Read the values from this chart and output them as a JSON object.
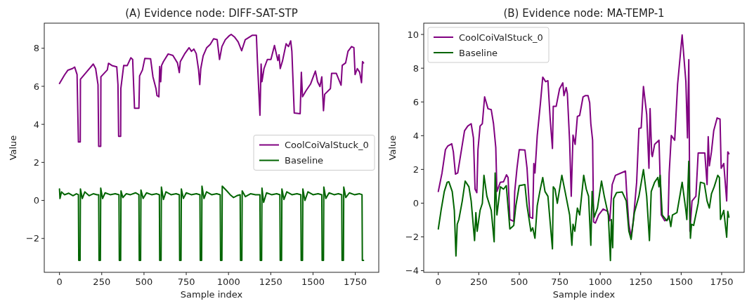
{
  "chart_data": [
    {
      "type": "line",
      "title": "(A) Evidence node: DIFF-SAT-STP",
      "xlabel": "Sample index",
      "ylabel": "Value",
      "xlim": [
        -90,
        1889
      ],
      "ylim": [
        -3.78,
        9.32
      ],
      "xticks": [
        0,
        250,
        500,
        750,
        1000,
        1250,
        1500,
        1750
      ],
      "yticks": [
        -2,
        0,
        2,
        4,
        6,
        8
      ],
      "legend": "right",
      "grid": false,
      "marker": "none",
      "line_style": "solid",
      "series": [
        {
          "name": "CoolCoiValStuck_0",
          "color": "#800080",
          "x": [
            0,
            30,
            50,
            76,
            90,
            104,
            112,
            123,
            124,
            159,
            200,
            214,
            228,
            232,
            244,
            245,
            283,
            290,
            311,
            339,
            346,
            350,
            362,
            363,
            380,
            401,
            422,
            433,
            438,
            444,
            470,
            474,
            491,
            505,
            539,
            553,
            571,
            577,
            588,
            593,
            599,
            604,
            615,
            643,
            671,
            698,
            709,
            715,
            740,
            767,
            781,
            795,
            809,
            823,
            830,
            836,
            850,
            871,
            892,
            912,
            933,
            947,
            961,
            981,
            1002,
            1016,
            1037,
            1057,
            1078,
            1099,
            1140,
            1165,
            1171,
            1186,
            1193,
            1198,
            1210,
            1230,
            1251,
            1272,
            1292,
            1299,
            1306,
            1320,
            1341,
            1355,
            1368,
            1375,
            1389,
            1424,
            1431,
            1438,
            1458,
            1486,
            1514,
            1527,
            1541,
            1552,
            1562,
            1569,
            1603,
            1610,
            1638,
            1666,
            1673,
            1693,
            1707,
            1728,
            1742,
            1749,
            1762,
            1776,
            1787,
            1793,
            1799
          ],
          "values": [
            6.15,
            6.6,
            6.85,
            6.93,
            7.01,
            6.62,
            3.07,
            3.07,
            6.37,
            6.74,
            7.17,
            6.93,
            6.09,
            2.84,
            2.84,
            6.5,
            6.86,
            7.21,
            7.09,
            7.02,
            6.09,
            3.37,
            3.37,
            5.88,
            7.1,
            7.09,
            7.5,
            7.41,
            6.24,
            4.85,
            4.85,
            6.55,
            6.86,
            7.47,
            7.45,
            6.5,
            5.88,
            5.51,
            5.45,
            7.04,
            6.24,
            7.09,
            7.3,
            7.7,
            7.62,
            7.23,
            6.72,
            7.3,
            7.7,
            8.03,
            7.84,
            7.96,
            7.72,
            6.86,
            6.09,
            6.93,
            7.6,
            8.03,
            8.2,
            8.5,
            8.45,
            7.41,
            8.09,
            8.45,
            8.64,
            8.73,
            8.58,
            8.34,
            7.87,
            8.45,
            8.68,
            8.68,
            7.35,
            4.48,
            7.17,
            6.24,
            6.93,
            7.41,
            7.41,
            8.15,
            7.35,
            7.66,
            6.93,
            7.35,
            8.24,
            8.09,
            8.39,
            7.84,
            4.6,
            4.56,
            6.74,
            5.45,
            5.76,
            6.13,
            6.8,
            6.24,
            5.99,
            6.5,
            4.72,
            5.58,
            5.88,
            6.68,
            6.68,
            6.06,
            7.1,
            7.23,
            7.84,
            8.09,
            8.03,
            6.62,
            6.93,
            6.74,
            6.19,
            7.3,
            7.23
          ]
        },
        {
          "name": "Baseline",
          "color": "#006400",
          "x": [
            0,
            3,
            12,
            30,
            55,
            80,
            100,
            112,
            114,
            122,
            124,
            135,
            150,
            175,
            200,
            222,
            232,
            234,
            242,
            244,
            255,
            270,
            300,
            330,
            352,
            354,
            362,
            364,
            375,
            395,
            420,
            450,
            470,
            472,
            480,
            482,
            495,
            515,
            545,
            575,
            591,
            593,
            601,
            603,
            615,
            630,
            660,
            690,
            709,
            711,
            719,
            721,
            733,
            750,
            780,
            810,
            831,
            833,
            841,
            843,
            855,
            870,
            900,
            930,
            951,
            953,
            961,
            963,
            990,
            1010,
            1030,
            1050,
            1069,
            1071,
            1079,
            1081,
            1100,
            1130,
            1160,
            1186,
            1188,
            1196,
            1198,
            1208,
            1225,
            1255,
            1285,
            1304,
            1306,
            1314,
            1316,
            1328,
            1345,
            1375,
            1405,
            1428,
            1430,
            1438,
            1440,
            1452,
            1470,
            1500,
            1530,
            1552,
            1554,
            1562,
            1564,
            1576,
            1595,
            1625,
            1650,
            1670,
            1672,
            1680,
            1682,
            1694,
            1715,
            1745,
            1775,
            1790,
            1792,
            1799
          ],
          "values": [
            0.6,
            0.1,
            0.45,
            0.3,
            0.38,
            0.25,
            0.35,
            0.3,
            -3.15,
            -3.15,
            0.6,
            0.1,
            0.45,
            0.25,
            0.35,
            0.3,
            0.3,
            -3.15,
            -3.15,
            0.65,
            0.1,
            0.4,
            0.3,
            0.35,
            0.3,
            -3.15,
            -3.15,
            0.5,
            0.15,
            0.35,
            0.3,
            0.4,
            0.3,
            -3.15,
            -3.15,
            0.55,
            0.1,
            0.4,
            0.3,
            0.35,
            0.3,
            -3.15,
            -3.15,
            0.7,
            0.05,
            0.45,
            0.3,
            0.35,
            0.3,
            -3.15,
            -3.15,
            0.6,
            0.1,
            0.4,
            0.3,
            0.35,
            0.3,
            -3.15,
            -3.15,
            0.75,
            0.1,
            0.45,
            0.3,
            0.35,
            0.3,
            -3.15,
            -3.15,
            0.75,
            0.5,
            0.3,
            0.15,
            0.25,
            0.3,
            -3.15,
            -3.15,
            0.5,
            0.2,
            0.35,
            0.3,
            0.3,
            -3.15,
            -3.15,
            0.65,
            -0.1,
            0.4,
            0.3,
            0.35,
            0.3,
            -3.15,
            -3.15,
            0.6,
            0.05,
            0.45,
            0.3,
            0.35,
            0.3,
            -3.15,
            -3.15,
            0.6,
            0.0,
            0.45,
            0.3,
            0.35,
            0.3,
            -3.15,
            -3.15,
            0.7,
            0.1,
            0.4,
            0.3,
            0.35,
            0.3,
            -3.15,
            -3.15,
            0.7,
            0.15,
            0.4,
            0.3,
            0.35,
            0.3,
            -3.15,
            -3.15
          ]
        }
      ]
    },
    {
      "type": "line",
      "title": "(B) Evidence node: MA-TEMP-1",
      "xlabel": "Sample index",
      "ylabel": "Value",
      "xlim": [
        -90,
        1889
      ],
      "ylim": [
        -4.1,
        10.67
      ],
      "xticks": [
        0,
        250,
        500,
        750,
        1000,
        1250,
        1500,
        1750
      ],
      "yticks": [
        -4,
        -2,
        0,
        2,
        4,
        6,
        8,
        10
      ],
      "legend": "top left",
      "grid": false,
      "marker": "none",
      "line_style": "solid",
      "series": [
        {
          "name": "CoolCoiValStuck_0",
          "color": "#800080",
          "x": [
            0,
            23,
            44,
            58,
            83,
            93,
            106,
            120,
            141,
            162,
            182,
            203,
            217,
            227,
            238,
            245,
            258,
            272,
            286,
            307,
            327,
            341,
            355,
            362,
            383,
            403,
            421,
            431,
            442,
            466,
            472,
            486,
            500,
            535,
            548,
            566,
            583,
            590,
            597,
            611,
            631,
            645,
            663,
            677,
            691,
            705,
            710,
            728,
            735,
            749,
            769,
            776,
            790,
            797,
            811,
            821,
            832,
            845,
            859,
            873,
            894,
            907,
            925,
            935,
            942,
            953,
            959,
            970,
            990,
            1018,
            1046,
            1059,
            1074,
            1094,
            1136,
            1156,
            1163,
            1177,
            1191,
            1205,
            1225,
            1239,
            1253,
            1267,
            1287,
            1301,
            1308,
            1318,
            1322,
            1336,
            1363,
            1377,
            1398,
            1419,
            1426,
            1439,
            1460,
            1478,
            1506,
            1529,
            1539,
            1547,
            1554,
            1567,
            1591,
            1605,
            1646,
            1660,
            1667,
            1674,
            1687,
            1701,
            1722,
            1740,
            1747,
            1763,
            1781,
            1788,
            1795
          ],
          "values": [
            0.69,
            1.79,
            3.17,
            3.38,
            3.52,
            3.04,
            1.72,
            1.79,
            3.04,
            4.29,
            4.57,
            4.71,
            3.87,
            0.83,
            0.62,
            3.17,
            4.57,
            4.71,
            6.3,
            5.6,
            5.54,
            4.71,
            3.3,
            0.69,
            1.24,
            1.27,
            1.68,
            1.52,
            -0.97,
            -1.08,
            0.69,
            2.07,
            3.17,
            3.15,
            2.07,
            -0.83,
            -0.9,
            2.35,
            1.79,
            4.01,
            5.95,
            7.47,
            7.2,
            7.26,
            4.98,
            3.24,
            5.74,
            5.74,
            6.09,
            6.78,
            7.13,
            6.37,
            6.85,
            6.5,
            3.67,
            0.41,
            4.03,
            3.48,
            5.14,
            5.2,
            6.3,
            6.37,
            6.37,
            5.95,
            4.71,
            3.73,
            -1.11,
            -1.18,
            -0.7,
            -0.35,
            -0.49,
            -1.04,
            1.1,
            1.65,
            1.82,
            1.9,
            0.69,
            -1.25,
            -2.02,
            -0.97,
            1.24,
            4.43,
            4.46,
            6.92,
            5.26,
            2.07,
            5.6,
            2.9,
            2.76,
            3.48,
            3.73,
            -0.7,
            -1.04,
            -0.97,
            1.79,
            4.01,
            3.73,
            7.06,
            9.97,
            7.2,
            3.87,
            8.51,
            -1.67,
            0.13,
            0.41,
            2.97,
            2.97,
            1.1,
            3.94,
            2.21,
            3.04,
            4.29,
            5.05,
            4.98,
            2.07,
            2.35,
            0.13,
            3.04,
            2.93
          ]
        },
        {
          "name": "Baseline",
          "color": "#006400",
          "x": [
            0,
            17,
            37,
            55,
            65,
            86,
            99,
            109,
            117,
            127,
            148,
            166,
            189,
            203,
            224,
            232,
            240,
            258,
            272,
            282,
            300,
            327,
            345,
            351,
            362,
            383,
            403,
            420,
            442,
            466,
            479,
            500,
            535,
            548,
            572,
            583,
            597,
            611,
            627,
            645,
            659,
            677,
            705,
            710,
            721,
            735,
            763,
            783,
            811,
            825,
            832,
            843,
            859,
            873,
            898,
            914,
            928,
            942,
            950,
            963,
            983,
            1008,
            1025,
            1050,
            1063,
            1069,
            1077,
            1083,
            1101,
            1136,
            1161,
            1177,
            1191,
            1211,
            1239,
            1267,
            1287,
            1304,
            1315,
            1336,
            1356,
            1363,
            1370,
            1383,
            1411,
            1425,
            1436,
            1446,
            1474,
            1494,
            1506,
            1529,
            1535,
            1547,
            1557,
            1564,
            1577,
            1605,
            1619,
            1643,
            1660,
            1674,
            1687,
            1704,
            1726,
            1736,
            1743,
            1763,
            1781,
            1788,
            1795
          ],
          "values": [
            -1.53,
            -0.43,
            0.69,
            1.24,
            1.27,
            0.69,
            -0.43,
            -3.13,
            -1.25,
            -0.97,
            0.13,
            1.31,
            0.97,
            0.13,
            -2.22,
            -0.56,
            -1.67,
            -0.43,
            -0.01,
            1.65,
            0.41,
            -0.43,
            -2.29,
            1.79,
            -0.7,
            0.97,
            0.83,
            1.04,
            -1.53,
            -1.32,
            -0.15,
            1.04,
            1.1,
            -0.15,
            -1.67,
            -1.46,
            -2.08,
            -0.15,
            0.69,
            1.52,
            0.69,
            0.41,
            -2.71,
            0.97,
            0.83,
            -0.01,
            1.65,
            0.69,
            -0.7,
            -2.5,
            -1.25,
            -1.67,
            -0.29,
            -0.7,
            1.65,
            0.83,
            0.41,
            -2.5,
            0.69,
            -0.83,
            -0.29,
            1.31,
            0.41,
            -0.7,
            -3.4,
            -0.97,
            -2.64,
            0.27,
            0.62,
            0.66,
            0.13,
            -1.67,
            -2.15,
            -0.56,
            0.41,
            1.99,
            0.41,
            -2.22,
            0.69,
            1.24,
            1.52,
            0.97,
            1.65,
            -0.7,
            -1.04,
            -0.76,
            -1.39,
            -0.7,
            -0.56,
            0.55,
            1.24,
            -0.43,
            -0.97,
            2.48,
            -2.08,
            -1.25,
            -1.32,
            -0.01,
            1.24,
            1.17,
            0.13,
            -0.29,
            0.55,
            0.97,
            1.65,
            1.52,
            -0.97,
            -0.43,
            -2.02,
            -0.49,
            -0.83
          ]
        }
      ]
    }
  ]
}
